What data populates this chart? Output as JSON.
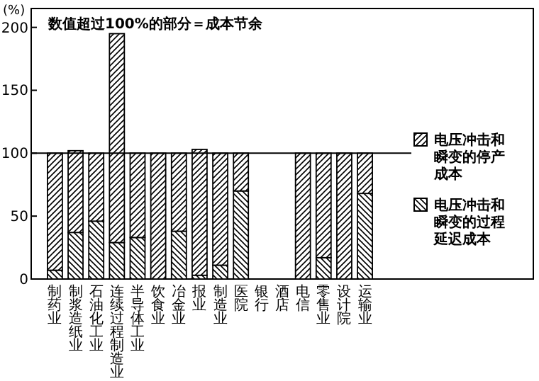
{
  "chart_data": {
    "type": "bar",
    "stacked": true,
    "ylabel": "(%)",
    "annotations": [
      "数值超过100%的部分＝成本节余"
    ],
    "categories": [
      "制药业",
      "制浆造纸业",
      "石油化工业",
      "连续过程制造业",
      "半导体工业",
      "饮食业",
      "冶金业",
      "报业",
      "制造业",
      "医院",
      "银行",
      "酒店",
      "电信",
      "零售业",
      "设计院",
      "运输业"
    ],
    "series": [
      {
        "name": "电压冲击和瞬变的过程延迟成本",
        "color": "#000000",
        "values": [
          7,
          37,
          46,
          29,
          33,
          0,
          38,
          3,
          11,
          70,
          0,
          0,
          0,
          17,
          0,
          68
        ]
      },
      {
        "name": "电压冲击和瞬变的停产成本",
        "color": "#000000",
        "values": [
          93,
          65,
          54,
          166,
          67,
          100,
          62,
          100,
          89,
          30,
          0,
          0,
          100,
          83,
          100,
          32
        ]
      }
    ],
    "ylim": [
      0,
      215
    ],
    "yticks": [
      0,
      50,
      100,
      150,
      200
    ],
    "ref_lines": [
      {
        "axis": "y",
        "value": 100
      }
    ],
    "legend": "right"
  }
}
